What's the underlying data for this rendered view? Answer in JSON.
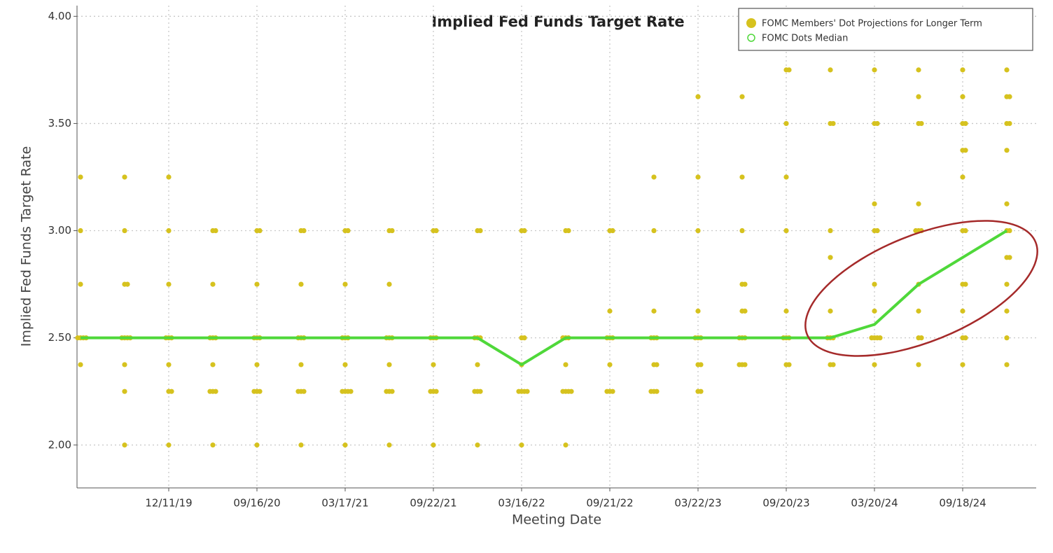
{
  "chart_data": {
    "type": "dot-plot",
    "title": "Implied Fed Funds Target Rate",
    "y_label": "Implied Fed Funds Target Rate",
    "x_label": "Meeting Date",
    "categories": [
      null,
      null,
      "12/11/19",
      null,
      "09/16/20",
      null,
      "03/17/21",
      null,
      "09/22/21",
      null,
      "03/16/22",
      null,
      "09/21/22",
      null,
      "03/22/23",
      null,
      "09/20/23",
      null,
      "03/20/24",
      null,
      "09/18/24",
      null
    ],
    "ylim": [
      1.8,
      4.05
    ],
    "yticks": [
      {
        "value": 2,
        "label": "2.00"
      },
      {
        "value": 2.5,
        "label": "2.50"
      },
      {
        "value": 3,
        "label": "3.00"
      },
      {
        "value": 3.5,
        "label": "3.50"
      },
      {
        "value": 4,
        "label": "4.00"
      }
    ],
    "grid": true,
    "legend": "top-right",
    "series": [
      {
        "name": "FOMC Members' Dot Projections for Longer Term",
        "color": "#d6c21e",
        "values": [
          [
            3.25,
            3.0,
            2.75,
            2.5,
            2.5,
            2.5,
            2.5,
            2.375
          ],
          [
            3.25,
            3.0,
            2.75,
            2.75,
            2.5,
            2.5,
            2.5,
            2.5,
            2.375,
            2.25,
            2.0
          ],
          [
            3.25,
            3.0,
            2.75,
            2.5,
            2.5,
            2.5,
            2.375,
            2.25,
            2.25,
            2.0
          ],
          [
            3.0,
            3.0,
            2.75,
            2.5,
            2.5,
            2.5,
            2.375,
            2.25,
            2.25,
            2.25,
            2.0
          ],
          [
            3.0,
            3.0,
            2.75,
            2.5,
            2.5,
            2.5,
            2.375,
            2.25,
            2.25,
            2.25,
            2.0
          ],
          [
            3.0,
            3.0,
            2.75,
            2.5,
            2.5,
            2.5,
            2.375,
            2.25,
            2.25,
            2.25,
            2.0
          ],
          [
            3.0,
            3.0,
            2.75,
            2.5,
            2.5,
            2.5,
            2.375,
            2.25,
            2.25,
            2.25,
            2.25,
            2.0
          ],
          [
            3.0,
            3.0,
            2.75,
            2.5,
            2.5,
            2.5,
            2.375,
            2.25,
            2.25,
            2.25,
            2.0
          ],
          [
            3.0,
            3.0,
            2.5,
            2.5,
            2.5,
            2.375,
            2.25,
            2.25,
            2.25,
            2.0
          ],
          [
            3.0,
            3.0,
            2.5,
            2.5,
            2.5,
            2.375,
            2.25,
            2.25,
            2.25,
            2.0
          ],
          [
            3.0,
            3.0,
            2.5,
            2.5,
            2.375,
            2.25,
            2.25,
            2.25,
            2.25,
            2.0
          ],
          [
            3.0,
            3.0,
            2.5,
            2.5,
            2.5,
            2.375,
            2.25,
            2.25,
            2.25,
            2.25,
            2.0
          ],
          [
            3.0,
            3.0,
            2.625,
            2.5,
            2.5,
            2.5,
            2.375,
            2.25,
            2.25,
            2.25
          ],
          [
            3.25,
            3.0,
            2.625,
            2.5,
            2.5,
            2.5,
            2.375,
            2.375,
            2.25,
            2.25,
            2.25
          ],
          [
            3.625,
            3.25,
            3.0,
            2.625,
            2.5,
            2.5,
            2.5,
            2.375,
            2.375,
            2.25,
            2.25
          ],
          [
            3.625,
            3.25,
            3.0,
            2.75,
            2.75,
            2.625,
            2.625,
            2.5,
            2.5,
            2.5,
            2.375,
            2.375,
            2.375
          ],
          [
            3.75,
            3.75,
            3.5,
            3.25,
            3.0,
            2.625,
            2.5,
            2.5,
            2.5,
            2.375,
            2.375
          ],
          [
            3.75,
            3.5,
            3.5,
            3.0,
            2.875,
            2.625,
            2.5,
            2.5,
            2.5,
            2.375,
            2.375
          ],
          [
            3.75,
            3.5,
            3.5,
            3.125,
            3.0,
            3.0,
            2.75,
            2.625,
            2.5,
            2.5,
            2.5,
            2.5,
            2.375
          ],
          [
            3.75,
            3.625,
            3.5,
            3.5,
            3.125,
            3.0,
            3.0,
            3.0,
            2.75,
            2.625,
            2.5,
            2.5,
            2.375
          ],
          [
            3.75,
            3.625,
            3.5,
            3.5,
            3.375,
            3.375,
            3.25,
            3.0,
            3.0,
            2.75,
            2.75,
            2.625,
            2.5,
            2.5,
            2.375
          ],
          [
            3.75,
            3.625,
            3.625,
            3.5,
            3.5,
            3.375,
            3.125,
            3.0,
            3.0,
            2.875,
            2.875,
            2.75,
            2.625,
            2.5,
            2.375
          ]
        ]
      },
      {
        "name": "FOMC Dots Median",
        "color": "#4fd83a",
        "values": [
          2.5,
          2.5,
          2.5,
          2.5,
          2.5,
          2.5,
          2.5,
          2.5,
          2.5,
          2.5,
          2.375,
          2.5,
          2.5,
          2.5,
          2.5,
          2.5,
          2.5,
          2.5,
          2.5625,
          2.75,
          2.875,
          3.0
        ]
      }
    ]
  }
}
